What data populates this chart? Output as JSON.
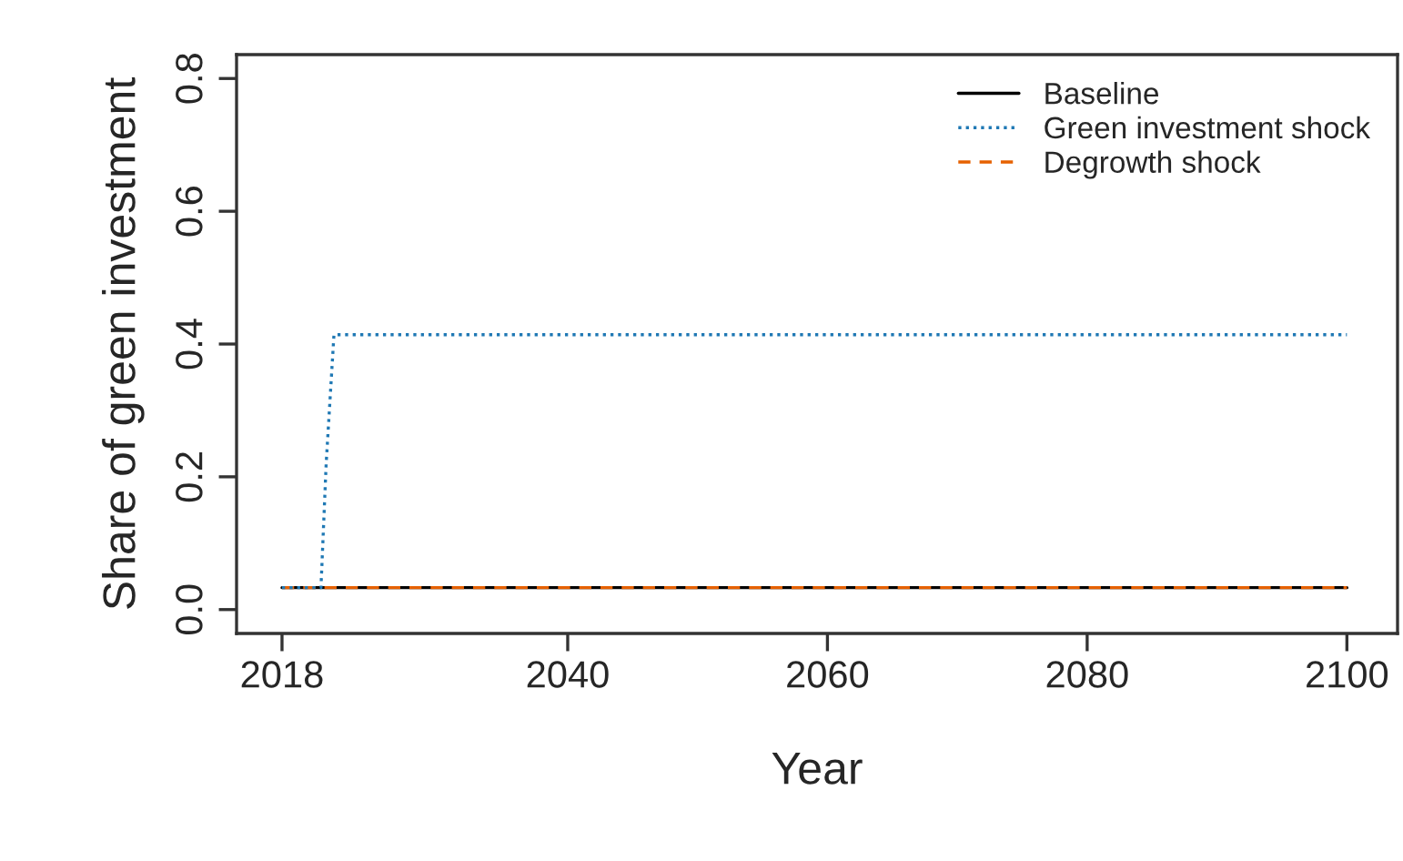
{
  "chart_data": {
    "type": "line",
    "xlabel": "Year",
    "ylabel": "Share of green investment",
    "x": [
      2018,
      2021,
      2021.4,
      2022,
      2100
    ],
    "series": [
      {
        "name": "Baseline",
        "color": "#000000",
        "line_style": "solid",
        "values": [
          0.033,
          0.033,
          0.033,
          0.033,
          0.033
        ]
      },
      {
        "name": "Green investment shock",
        "color": "#1f78b4",
        "line_style": "dotted",
        "values": [
          0.033,
          0.033,
          0.22,
          0.414,
          0.414
        ]
      },
      {
        "name": "Degrowth shock",
        "color": "#e66101",
        "line_style": "dashed",
        "values": [
          0.033,
          0.033,
          0.033,
          0.033,
          0.033
        ]
      }
    ],
    "xlim": [
      2014.5,
      2103.9
    ],
    "ylim": [
      -0.036,
      0.836
    ],
    "xticks": [
      2018,
      2040,
      2060,
      2080,
      2100
    ],
    "yticks": [
      {
        "value": 0,
        "label": "0.0"
      },
      {
        "value": 0.2,
        "label": "0.2"
      },
      {
        "value": 0.4,
        "label": "0.4"
      },
      {
        "value": 0.6,
        "label": "0.6"
      },
      {
        "value": 0.8,
        "label": "0.8"
      }
    ],
    "grid": false,
    "legend": "top right",
    "marker": "none"
  }
}
